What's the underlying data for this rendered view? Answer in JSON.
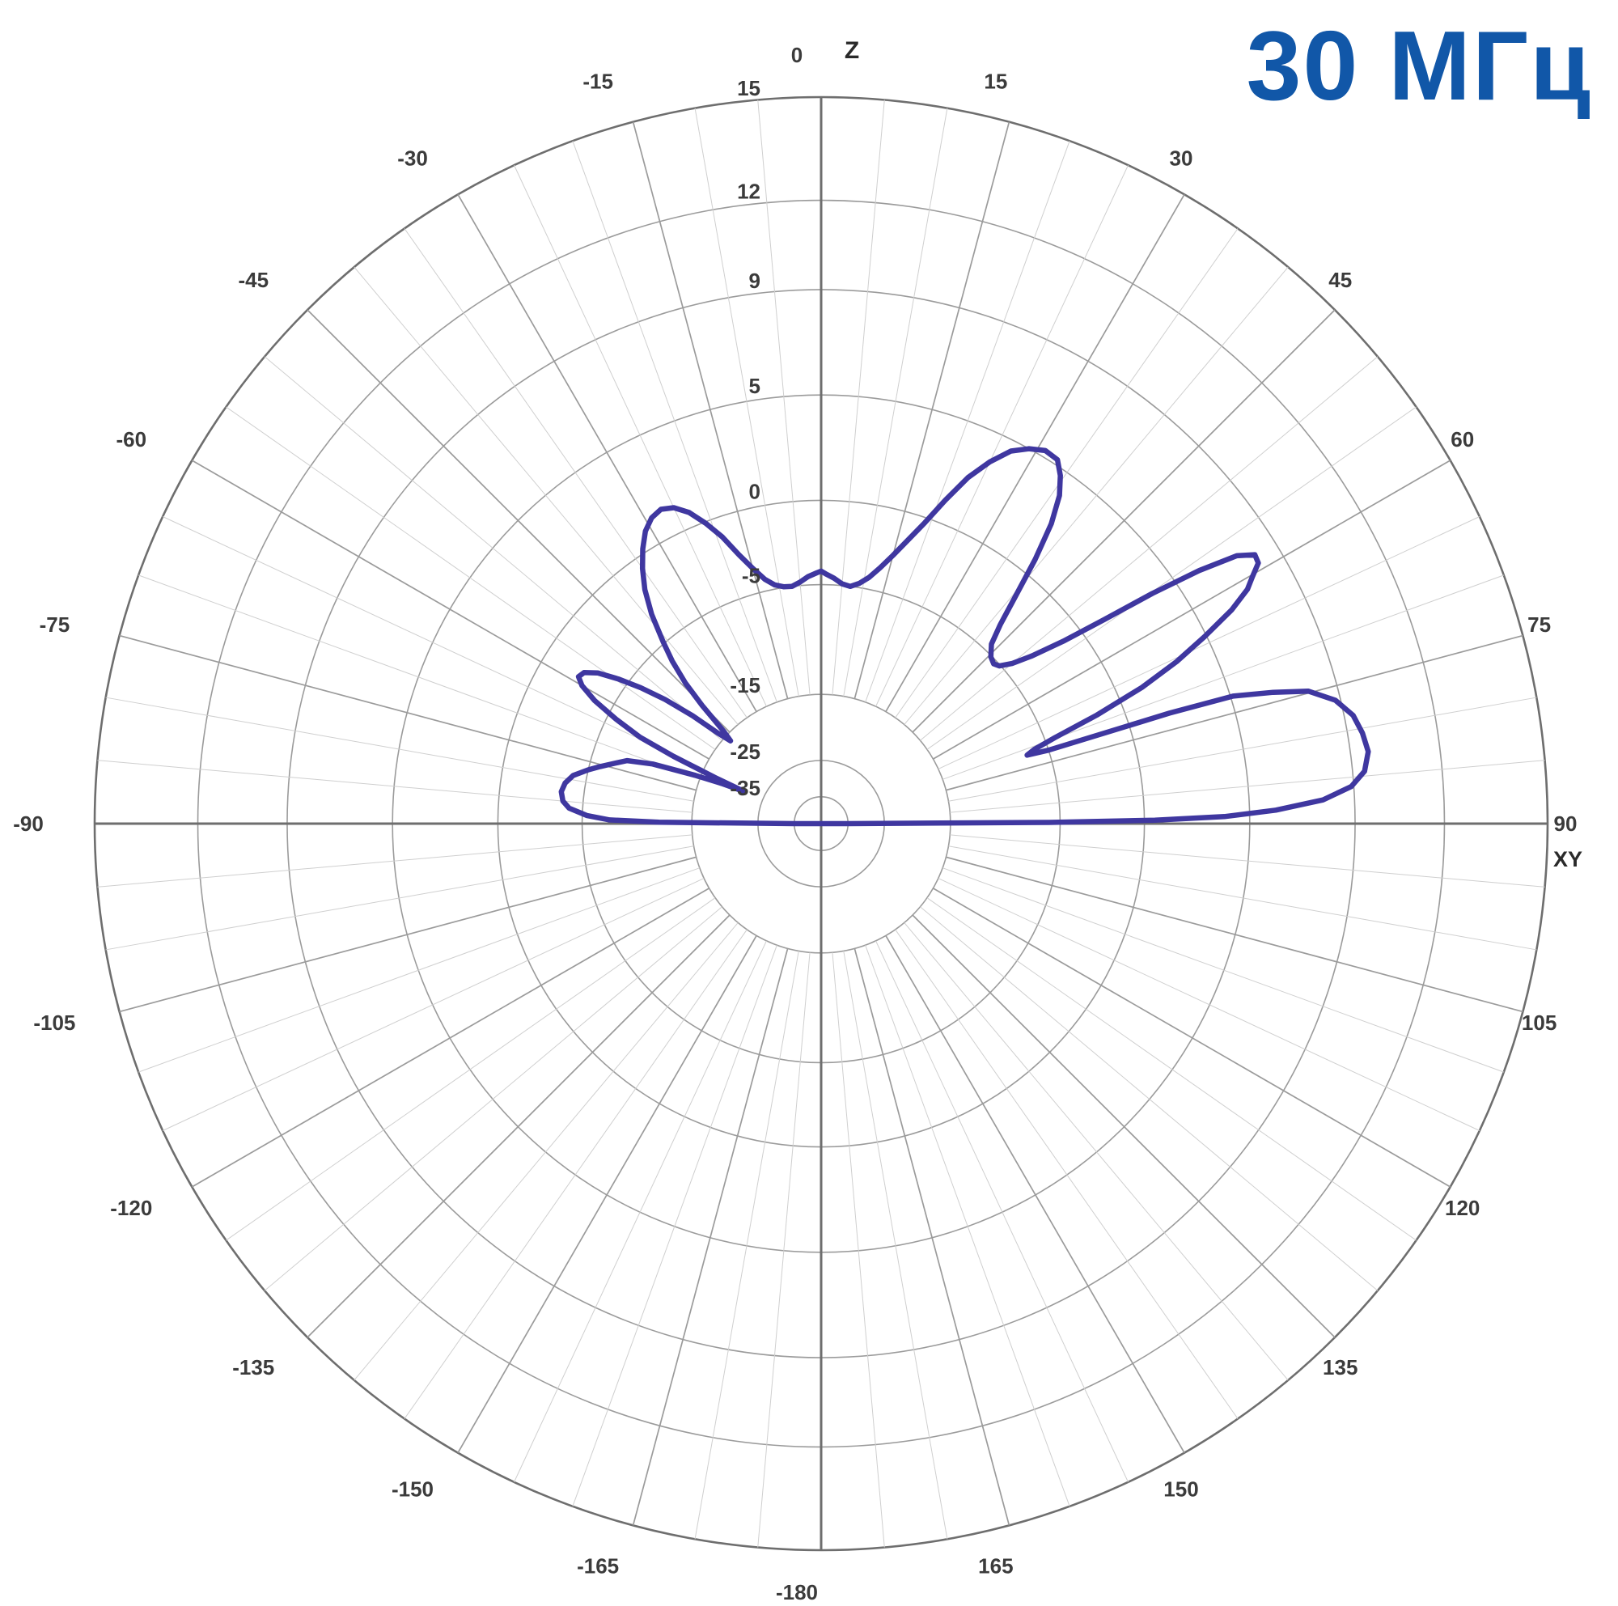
{
  "title": {
    "text": "30 МГц",
    "color": "#1157a8"
  },
  "axis_markers": {
    "top": "Z",
    "right": "XY"
  },
  "chart_data": {
    "type": "polar-radiation-pattern",
    "angle_unit": "degrees",
    "angle_range": [
      -180,
      180
    ],
    "angle_tick_step": 15,
    "minor_spoke_step": 5,
    "angle_tick_labels": [
      "0",
      "15",
      "30",
      "45",
      "60",
      "75",
      "90",
      "105",
      "120",
      "135",
      "150",
      "165",
      "-15",
      "-30",
      "-45",
      "-60",
      "-75",
      "-90",
      "-105",
      "-120",
      "-135",
      "-150",
      "-165",
      "-180"
    ],
    "radial_unit": "dB",
    "radial_scale": [
      {
        "db": 15,
        "r": 1.0,
        "label": "15"
      },
      {
        "db": 12,
        "r": 0.858,
        "label": "12"
      },
      {
        "db": 9,
        "r": 0.735,
        "label": "9"
      },
      {
        "db": 5,
        "r": 0.59,
        "label": "5"
      },
      {
        "db": 0,
        "r": 0.445,
        "label": "0"
      },
      {
        "db": -5,
        "r": 0.329,
        "label": "-5"
      },
      {
        "db": -15,
        "r": 0.178,
        "label": "-15"
      },
      {
        "db": -25,
        "r": 0.087,
        "label": "-25"
      },
      {
        "db": -35,
        "r": 0.037,
        "label": "-35"
      }
    ],
    "series": [
      {
        "name": "gain-pattern-30MHz",
        "color": "#3f37a0",
        "points": [
          [
            -90,
            -35
          ],
          [
            -89.5,
            -12
          ],
          [
            -89,
            -7.5
          ],
          [
            -88,
            -5.4
          ],
          [
            -86.5,
            -4.2
          ],
          [
            -85,
            -3.8
          ],
          [
            -83,
            -3.65
          ],
          [
            -81,
            -3.8
          ],
          [
            -79,
            -4.2
          ],
          [
            -77,
            -5
          ],
          [
            -75.5,
            -6
          ],
          [
            -74,
            -7
          ],
          [
            -72,
            -8.2
          ],
          [
            -70.5,
            -10.5
          ],
          [
            -69,
            -14.5
          ],
          [
            -68,
            -18.5
          ],
          [
            -67.3,
            -22
          ],
          [
            -66.5,
            -17
          ],
          [
            -65.5,
            -12
          ],
          [
            -64.5,
            -8.5
          ],
          [
            -63,
            -5.8
          ],
          [
            -61.5,
            -3.9
          ],
          [
            -60,
            -2.8
          ],
          [
            -58.8,
            -2.35
          ],
          [
            -57.5,
            -2.5
          ],
          [
            -56,
            -3.2
          ],
          [
            -54.5,
            -4.4
          ],
          [
            -53,
            -6.2
          ],
          [
            -51.5,
            -8.6
          ],
          [
            -50,
            -11.5
          ],
          [
            -48.8,
            -14.2
          ],
          [
            -47.6,
            -16
          ],
          [
            -46.5,
            -14.5
          ],
          [
            -45.2,
            -11.5
          ],
          [
            -44,
            -9
          ],
          [
            -42.5,
            -6.7
          ],
          [
            -41,
            -4.9
          ],
          [
            -39,
            -3.2
          ],
          [
            -37,
            -1.8
          ],
          [
            -35,
            -0.7
          ],
          [
            -33,
            0.2
          ],
          [
            -31,
            0.85
          ],
          [
            -29,
            1.25
          ],
          [
            -27,
            1.4
          ],
          [
            -25,
            1.2
          ],
          [
            -23,
            0.7
          ],
          [
            -21,
            -0.1
          ],
          [
            -19,
            -1.2
          ],
          [
            -17,
            -2.5
          ],
          [
            -15,
            -3.5
          ],
          [
            -13,
            -4.3
          ],
          [
            -11,
            -4.75
          ],
          [
            -9,
            -4.95
          ],
          [
            -7,
            -5
          ],
          [
            -5,
            -4.8
          ],
          [
            -3,
            -4.5
          ],
          [
            -1,
            -4.3
          ],
          [
            0,
            -4.2
          ],
          [
            1,
            -4.35
          ],
          [
            3,
            -4.6
          ],
          [
            5,
            -4.9
          ],
          [
            7,
            -5
          ],
          [
            9,
            -4.75
          ],
          [
            11,
            -4.3
          ],
          [
            13,
            -3.6
          ],
          [
            15,
            -2.7
          ],
          [
            17,
            -1.6
          ],
          [
            19,
            -0.3
          ],
          [
            21,
            1.1
          ],
          [
            23,
            2.5
          ],
          [
            25,
            3.6
          ],
          [
            27,
            4.5
          ],
          [
            29,
            5
          ],
          [
            31,
            5.25
          ],
          [
            33,
            5.2
          ],
          [
            34.5,
            4.7
          ],
          [
            36,
            3.9
          ],
          [
            37.5,
            2.6
          ],
          [
            39,
            0.8
          ],
          [
            40.5,
            -1.4
          ],
          [
            42,
            -3.3
          ],
          [
            43.5,
            -4.5
          ],
          [
            45.5,
            -5.1
          ],
          [
            47.2,
            -5.35
          ],
          [
            48.5,
            -5.1
          ],
          [
            50,
            -4.4
          ],
          [
            51.5,
            -3.2
          ],
          [
            53,
            -1.2
          ],
          [
            54.2,
            1.2
          ],
          [
            55.2,
            3.8
          ],
          [
            56.2,
            6
          ],
          [
            57.2,
            7.5
          ],
          [
            58.2,
            8.1
          ],
          [
            59.2,
            8.05
          ],
          [
            60.2,
            7.6
          ],
          [
            61.2,
            7.2
          ],
          [
            62.5,
            6.3
          ],
          [
            64,
            4.9
          ],
          [
            65.5,
            3.2
          ],
          [
            67,
            1.2
          ],
          [
            68.5,
            -1.6
          ],
          [
            69.8,
            -4.4
          ],
          [
            70.8,
            -6.2
          ],
          [
            71.6,
            -7
          ],
          [
            72.1,
            -5
          ],
          [
            72.4,
            2
          ],
          [
            72.8,
            5.1
          ],
          [
            73.8,
            6.6
          ],
          [
            74.8,
            7.9
          ],
          [
            76.5,
            8.8
          ],
          [
            78.5,
            9.3
          ],
          [
            80.5,
            9.5
          ],
          [
            82.5,
            9.6
          ],
          [
            84.5,
            9.4
          ],
          [
            86,
            8.9
          ],
          [
            87.3,
            7.8
          ],
          [
            88.3,
            6
          ],
          [
            89,
            3.8
          ],
          [
            89.4,
            0.5
          ],
          [
            89.7,
            -6
          ],
          [
            90,
            -35
          ]
        ]
      }
    ],
    "grid": {
      "outer_circle_color": "#6e6e6e",
      "axis_color": "#6e6e6e",
      "major_spoke_color": "#9b9b9b",
      "minor_spoke_color": "#cfcfcf",
      "ring_color": "#9b9b9b",
      "label_color": "#3b3b3b",
      "spokes_inner_db": -15
    },
    "legend": null
  }
}
